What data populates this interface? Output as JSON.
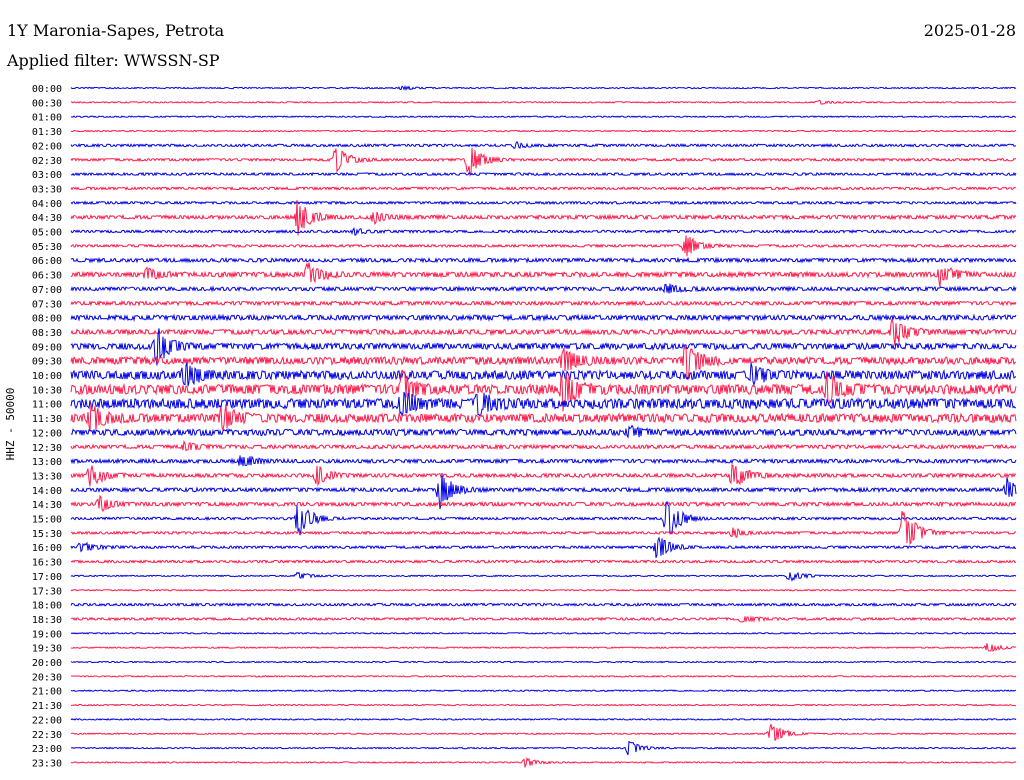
{
  "header": {
    "station": "1Y Maronia-Sapes, Petrota",
    "date": "2025-01-28",
    "filter": "Applied filter: WWSSN-SP"
  },
  "chart_data": {
    "type": "line",
    "title": "1Y Maronia-Sapes, Petrota",
    "subtitle": "Applied filter: WWSSN-SP",
    "ylabel": "HHZ - 50000",
    "row_labels": [
      "00:00",
      "00:30",
      "01:00",
      "01:30",
      "02:00",
      "02:30",
      "03:00",
      "03:30",
      "04:00",
      "04:30",
      "05:00",
      "05:30",
      "06:00",
      "06:30",
      "07:00",
      "07:30",
      "08:00",
      "08:30",
      "09:00",
      "09:30",
      "10:00",
      "10:30",
      "11:00",
      "11:30",
      "12:00",
      "12:30",
      "13:00",
      "13:30",
      "14:00",
      "14:30",
      "15:00",
      "15:30",
      "16:00",
      "16:30",
      "17:00",
      "17:30",
      "18:00",
      "18:30",
      "19:00",
      "19:30",
      "20:00",
      "20:30",
      "21:00",
      "21:30",
      "22:00",
      "22:30",
      "23:00",
      "23:30"
    ],
    "trace_colors": [
      "#0000e6",
      "#ff1a4a"
    ],
    "noise_level": [
      1,
      1,
      1,
      1,
      2,
      2,
      2,
      2,
      2,
      3,
      2,
      2,
      3,
      4,
      3,
      3,
      4,
      4,
      5,
      6,
      7,
      8,
      8,
      7,
      5,
      3,
      3,
      3,
      3,
      3,
      2,
      2,
      2,
      2,
      1,
      1,
      2,
      2,
      1,
      1,
      1,
      1,
      1,
      1,
      1,
      1,
      1,
      1
    ],
    "events": [
      {
        "row": 0,
        "pos": 0.35,
        "amp": 2
      },
      {
        "row": 1,
        "pos": 0.79,
        "amp": 2
      },
      {
        "row": 4,
        "pos": 0.47,
        "amp": 3
      },
      {
        "row": 5,
        "pos": 0.28,
        "amp": 14
      },
      {
        "row": 5,
        "pos": 0.42,
        "amp": 18
      },
      {
        "row": 9,
        "pos": 0.24,
        "amp": 20
      },
      {
        "row": 9,
        "pos": 0.32,
        "amp": 6
      },
      {
        "row": 10,
        "pos": 0.3,
        "amp": 3
      },
      {
        "row": 11,
        "pos": 0.65,
        "amp": 12
      },
      {
        "row": 13,
        "pos": 0.08,
        "amp": 6
      },
      {
        "row": 13,
        "pos": 0.25,
        "amp": 14
      },
      {
        "row": 13,
        "pos": 0.92,
        "amp": 12
      },
      {
        "row": 14,
        "pos": 0.63,
        "amp": 6
      },
      {
        "row": 17,
        "pos": 0.87,
        "amp": 18
      },
      {
        "row": 18,
        "pos": 0.09,
        "amp": 22
      },
      {
        "row": 19,
        "pos": 0.65,
        "amp": 22
      },
      {
        "row": 19,
        "pos": 0.52,
        "amp": 16
      },
      {
        "row": 20,
        "pos": 0.12,
        "amp": 14
      },
      {
        "row": 20,
        "pos": 0.72,
        "amp": 10
      },
      {
        "row": 21,
        "pos": 0.35,
        "amp": 18
      },
      {
        "row": 21,
        "pos": 0.52,
        "amp": 20
      },
      {
        "row": 21,
        "pos": 0.8,
        "amp": 16
      },
      {
        "row": 22,
        "pos": 0.35,
        "amp": 14
      },
      {
        "row": 22,
        "pos": 0.43,
        "amp": 12
      },
      {
        "row": 23,
        "pos": 0.02,
        "amp": 16
      },
      {
        "row": 23,
        "pos": 0.16,
        "amp": 14
      },
      {
        "row": 24,
        "pos": 0.59,
        "amp": 6
      },
      {
        "row": 25,
        "pos": 0.12,
        "amp": 5
      },
      {
        "row": 26,
        "pos": 0.18,
        "amp": 8
      },
      {
        "row": 27,
        "pos": 0.02,
        "amp": 12
      },
      {
        "row": 27,
        "pos": 0.26,
        "amp": 10
      },
      {
        "row": 27,
        "pos": 0.7,
        "amp": 16
      },
      {
        "row": 28,
        "pos": 0.39,
        "amp": 20
      },
      {
        "row": 28,
        "pos": 0.99,
        "amp": 12
      },
      {
        "row": 29,
        "pos": 0.03,
        "amp": 8
      },
      {
        "row": 30,
        "pos": 0.24,
        "amp": 20
      },
      {
        "row": 30,
        "pos": 0.63,
        "amp": 22
      },
      {
        "row": 31,
        "pos": 0.88,
        "amp": 30
      },
      {
        "row": 31,
        "pos": 0.7,
        "amp": 5
      },
      {
        "row": 32,
        "pos": 0.62,
        "amp": 14
      },
      {
        "row": 32,
        "pos": 0.01,
        "amp": 6
      },
      {
        "row": 34,
        "pos": 0.24,
        "amp": 4
      },
      {
        "row": 34,
        "pos": 0.76,
        "amp": 6
      },
      {
        "row": 37,
        "pos": 0.71,
        "amp": 4
      },
      {
        "row": 39,
        "pos": 0.97,
        "amp": 5
      },
      {
        "row": 45,
        "pos": 0.74,
        "amp": 12
      },
      {
        "row": 46,
        "pos": 0.59,
        "amp": 8
      },
      {
        "row": 47,
        "pos": 0.48,
        "amp": 5
      }
    ]
  }
}
